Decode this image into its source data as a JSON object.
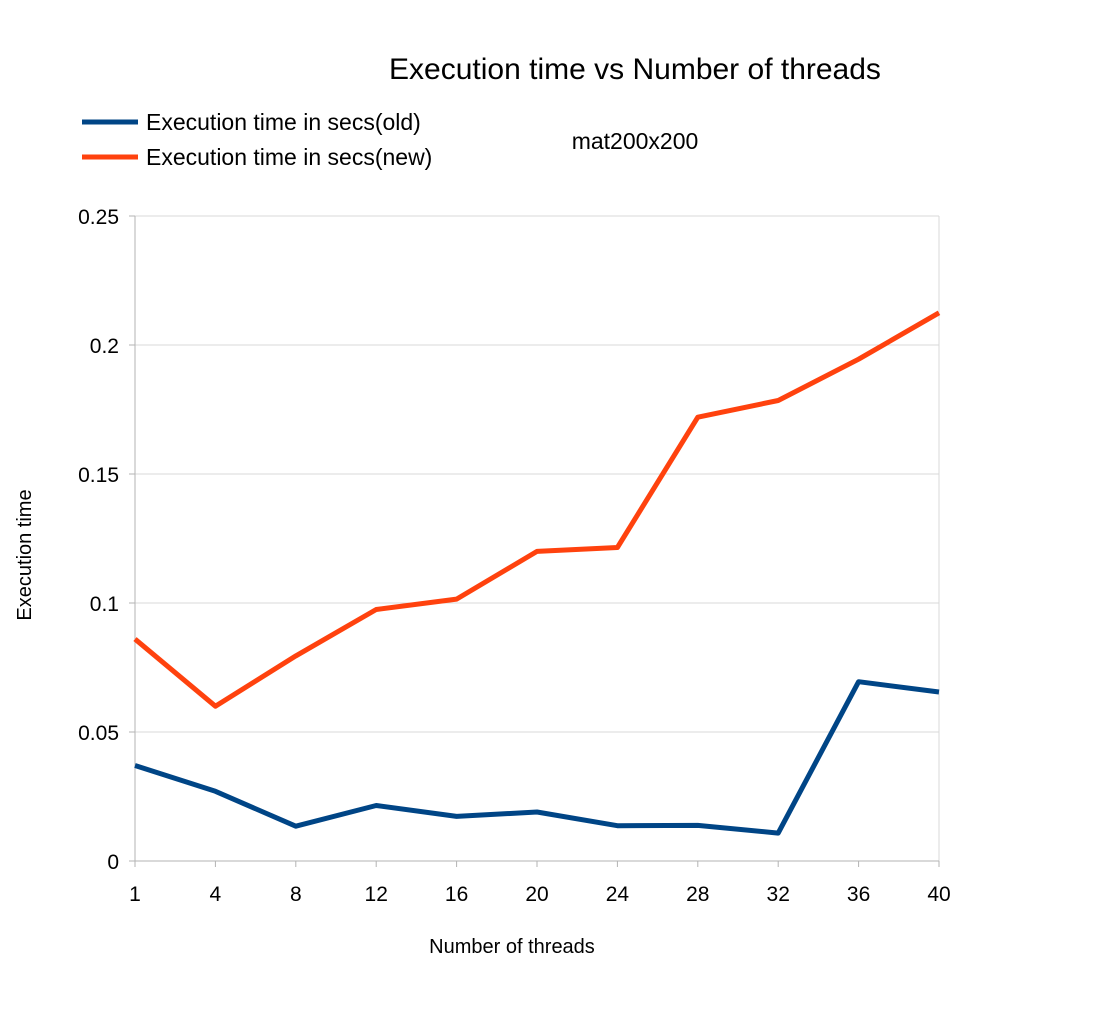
{
  "chart_data": {
    "type": "line",
    "title": "Execution time vs Number of threads",
    "subtitle": "mat200x200",
    "xlabel": "Number of threads",
    "ylabel": "Execution time",
    "categories": [
      "1",
      "4",
      "8",
      "12",
      "16",
      "20",
      "24",
      "28",
      "32",
      "36",
      "40"
    ],
    "ylim": [
      0,
      0.25
    ],
    "yticks": [
      "0",
      "0.05",
      "0.1",
      "0.15",
      "0.2",
      "0.25"
    ],
    "grid": true,
    "legend_position": "top-left",
    "series": [
      {
        "name": "Execution time in secs(old)",
        "color": "#004586",
        "values": [
          0.037,
          0.027,
          0.0135,
          0.0215,
          0.0173,
          0.019,
          0.0137,
          0.0138,
          0.0108,
          0.0695,
          0.0655
        ]
      },
      {
        "name": "Execution time in secs(new)",
        "color": "#ff420e",
        "values": [
          0.086,
          0.06,
          0.0795,
          0.0975,
          0.1015,
          0.12,
          0.1215,
          0.172,
          0.1785,
          0.1945,
          0.2125
        ]
      }
    ]
  }
}
